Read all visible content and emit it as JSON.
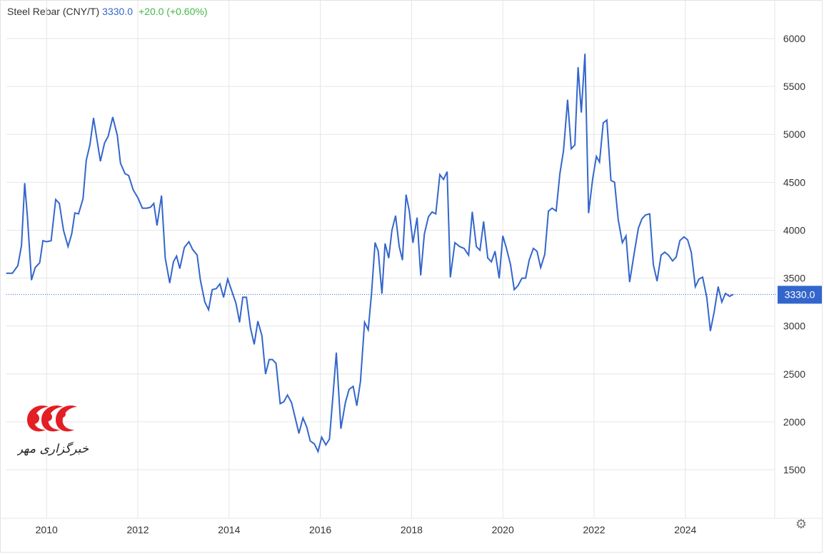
{
  "legend": {
    "name": "Steel Rebar (CNY/T)",
    "price": "3330.0",
    "change": "+20.0 (+0.60%)"
  },
  "price_tag": "3330.0",
  "colors": {
    "line": "#3366cc",
    "change": "#45b649",
    "grid": "#e6e6e6",
    "tag": "#3366cc",
    "logo": "#e31e24"
  },
  "logo": {
    "text": "خبرگزاری مهر"
  },
  "settings_icon": "gear-icon",
  "chart_data": {
    "type": "line",
    "title": "Steel Rebar (CNY/T)",
    "xlabel": "",
    "ylabel": "",
    "xlim": [
      2009.12,
      2025.6
    ],
    "ylim": [
      1000,
      6300
    ],
    "grid": true,
    "y_ticks": [
      "1500",
      "2000",
      "2500",
      "3000",
      "3500",
      "4000",
      "4500",
      "5000",
      "5500",
      "6000"
    ],
    "x_ticks": [
      "2010",
      "2012",
      "2014",
      "2016",
      "2018",
      "2020",
      "2022",
      "2024"
    ],
    "last_value": 3330.0,
    "series": [
      {
        "x": [
          2009.12,
          2009.25,
          2009.37,
          2009.45,
          2009.52,
          2009.58,
          2009.67,
          2009.75,
          2009.85,
          2009.92,
          2010.0,
          2010.1,
          2010.2,
          2010.28,
          2010.37,
          2010.47,
          2010.55,
          2010.62,
          2010.7,
          2010.8,
          2010.87,
          2010.95,
          2011.03,
          2011.1,
          2011.18,
          2011.27,
          2011.35,
          2011.45,
          2011.55,
          2011.62,
          2011.72,
          2011.8,
          2011.9,
          2012.0,
          2012.1,
          2012.2,
          2012.28,
          2012.35,
          2012.42,
          2012.52,
          2012.6,
          2012.7,
          2012.78,
          2012.85,
          2012.92,
          2013.02,
          2013.12,
          2013.2,
          2013.3,
          2013.37,
          2013.47,
          2013.55,
          2013.63,
          2013.72,
          2013.8,
          2013.88,
          2013.97,
          2014.07,
          2014.15,
          2014.23,
          2014.3,
          2014.38,
          2014.47,
          2014.55,
          2014.63,
          2014.72,
          2014.8,
          2014.88,
          2014.95,
          2015.03,
          2015.12,
          2015.2,
          2015.28,
          2015.37,
          2015.45,
          2015.53,
          2015.62,
          2015.7,
          2015.78,
          2015.87,
          2015.95,
          2016.03,
          2016.12,
          2016.2,
          2016.28,
          2016.35,
          2016.45,
          2016.55,
          2016.63,
          2016.72,
          2016.8,
          2016.88,
          2016.97,
          2017.05,
          2017.12,
          2017.2,
          2017.27,
          2017.35,
          2017.42,
          2017.5,
          2017.57,
          2017.65,
          2017.73,
          2017.8,
          2017.88,
          2017.95,
          2018.03,
          2018.12,
          2018.2,
          2018.28,
          2018.37,
          2018.45,
          2018.53,
          2018.62,
          2018.7,
          2018.78,
          2018.85,
          2018.95,
          2019.05,
          2019.15,
          2019.25,
          2019.33,
          2019.42,
          2019.5,
          2019.58,
          2019.67,
          2019.75,
          2019.83,
          2019.92,
          2020.0,
          2020.08,
          2020.17,
          2020.25,
          2020.33,
          2020.42,
          2020.5,
          2020.58,
          2020.67,
          2020.75,
          2020.83,
          2020.92,
          2021.0,
          2021.08,
          2021.17,
          2021.25,
          2021.33,
          2021.42,
          2021.5,
          2021.58,
          2021.65,
          2021.72,
          2021.8,
          2021.88,
          2021.97,
          2022.05,
          2022.12,
          2022.2,
          2022.28,
          2022.37,
          2022.45,
          2022.53,
          2022.62,
          2022.7,
          2022.78,
          2022.88,
          2022.97,
          2023.05,
          2023.13,
          2023.22,
          2023.3,
          2023.38,
          2023.47,
          2023.55,
          2023.63,
          2023.72,
          2023.8,
          2023.88,
          2023.97,
          2024.05,
          2024.13,
          2024.22,
          2024.3,
          2024.38,
          2024.47,
          2024.55,
          2024.63,
          2024.72,
          2024.8,
          2024.88,
          2024.97,
          2025.05
        ],
        "y": [
          3550,
          3550,
          3630,
          3840,
          4490,
          4140,
          3480,
          3610,
          3660,
          3890,
          3880,
          3890,
          4320,
          4280,
          4000,
          3830,
          3960,
          4180,
          4170,
          4330,
          4730,
          4890,
          5170,
          4960,
          4720,
          4910,
          4980,
          5180,
          4990,
          4700,
          4590,
          4570,
          4420,
          4340,
          4230,
          4230,
          4240,
          4280,
          4050,
          4360,
          3710,
          3450,
          3670,
          3730,
          3600,
          3820,
          3880,
          3800,
          3740,
          3480,
          3250,
          3170,
          3380,
          3390,
          3440,
          3300,
          3490,
          3350,
          3240,
          3040,
          3300,
          3300,
          2980,
          2810,
          3050,
          2900,
          2500,
          2650,
          2650,
          2610,
          2190,
          2210,
          2280,
          2200,
          2040,
          1880,
          2040,
          1950,
          1800,
          1770,
          1690,
          1840,
          1760,
          1820,
          2290,
          2720,
          1930,
          2200,
          2340,
          2370,
          2170,
          2420,
          3040,
          2960,
          3330,
          3870,
          3780,
          3340,
          3860,
          3710,
          4000,
          4150,
          3830,
          3690,
          4370,
          4200,
          3870,
          4130,
          3530,
          3960,
          4140,
          4190,
          4170,
          4580,
          4530,
          4610,
          3510,
          3870,
          3830,
          3810,
          3740,
          4190,
          3830,
          3790,
          4090,
          3710,
          3670,
          3780,
          3500,
          3940,
          3810,
          3640,
          3380,
          3420,
          3500,
          3500,
          3690,
          3810,
          3780,
          3610,
          3750,
          4200,
          4230,
          4200,
          4590,
          4830,
          5360,
          4850,
          4890,
          5700,
          5230,
          5840,
          4180,
          4540,
          4770,
          4710,
          5120,
          5150,
          4520,
          4500,
          4110,
          3870,
          3940,
          3460,
          3760,
          4020,
          4120,
          4160,
          4170,
          3640,
          3470,
          3740,
          3770,
          3740,
          3680,
          3720,
          3890,
          3930,
          3900,
          3770,
          3410,
          3490,
          3510,
          3300,
          2950,
          3140,
          3410,
          3250,
          3340,
          3310,
          3330
        ]
      }
    ]
  }
}
